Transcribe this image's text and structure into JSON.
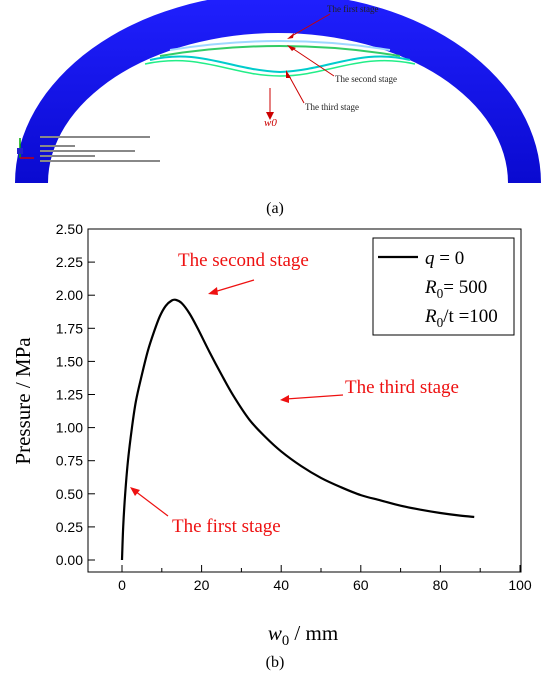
{
  "panel_a": {
    "label": "(a)",
    "annotations": {
      "first": "The first stage",
      "second": "The second stage",
      "third": "The third stage",
      "w0": "w0"
    },
    "colors": {
      "shell": "#1010e0",
      "annotation": "#cc0000"
    }
  },
  "panel_b": {
    "label": "(b)"
  },
  "chart_data": {
    "type": "line",
    "xlabel": "w0 / mm",
    "ylabel": "Pressure / MPa",
    "xlim": [
      0,
      100
    ],
    "ylim": [
      0,
      2.5
    ],
    "x_ticks": [
      0,
      20,
      40,
      60,
      80,
      100
    ],
    "y_ticks": [
      0.0,
      0.25,
      0.5,
      0.75,
      1.0,
      1.25,
      1.5,
      1.75,
      2.0,
      2.25,
      2.5
    ],
    "grid": false,
    "legend": {
      "placement": "top-right",
      "entries": [
        "q = 0",
        "R0= 500",
        "R0/t =100"
      ]
    },
    "series": [
      {
        "line_color": "#000000",
        "x": [
          0,
          0.3,
          0.8,
          1.5,
          2.5,
          3.5,
          5,
          6.5,
          8,
          9.5,
          11,
          12.5,
          13.5,
          15,
          17,
          19,
          22,
          25,
          28,
          32,
          36,
          40,
          45,
          50,
          55,
          60,
          65,
          70,
          75,
          80,
          85,
          88.5
        ],
        "y": [
          0.0,
          0.25,
          0.5,
          0.75,
          1.0,
          1.2,
          1.4,
          1.58,
          1.72,
          1.84,
          1.92,
          1.96,
          1.965,
          1.94,
          1.86,
          1.75,
          1.57,
          1.4,
          1.24,
          1.06,
          0.93,
          0.82,
          0.71,
          0.62,
          0.55,
          0.49,
          0.45,
          0.41,
          0.38,
          0.355,
          0.335,
          0.325
        ]
      }
    ],
    "annotations": [
      {
        "text": "The second stage",
        "color": "#ee1111"
      },
      {
        "text": "The third stage",
        "color": "#ee1111"
      },
      {
        "text": "The first stage",
        "color": "#ee1111"
      }
    ]
  }
}
